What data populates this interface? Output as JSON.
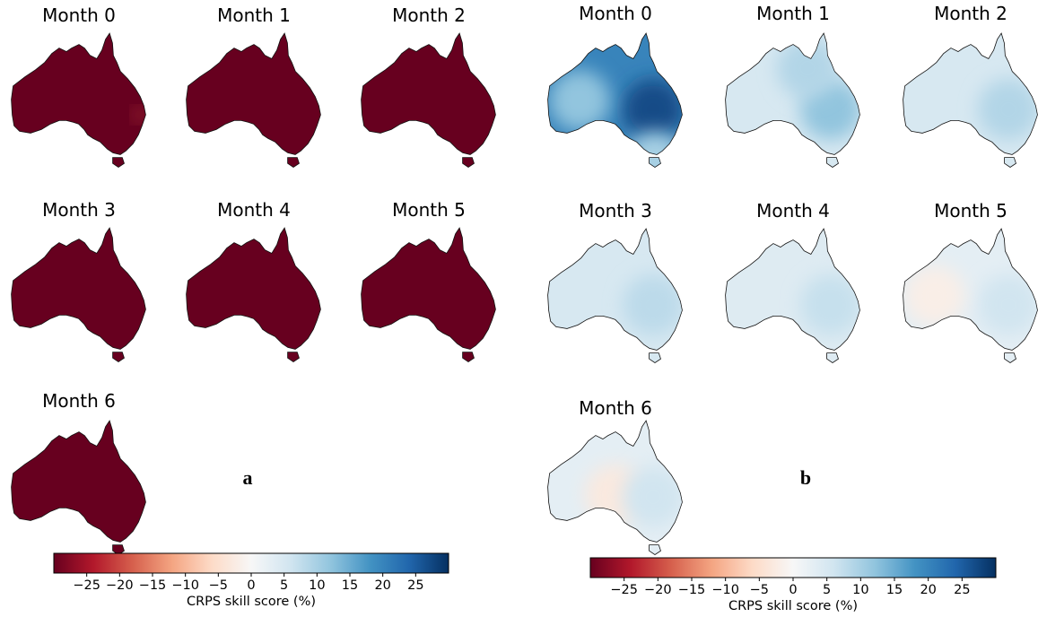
{
  "chart_data": [
    {
      "type": "heatmap",
      "panel_label": "a",
      "maps": [
        {
          "title": "Month 0",
          "dominant_value": -30,
          "hotspots": [
            {
              "place": "east-coast",
              "value": -20
            }
          ]
        },
        {
          "title": "Month 1",
          "dominant_value": -30,
          "hotspots": []
        },
        {
          "title": "Month 2",
          "dominant_value": -30,
          "hotspots": []
        },
        {
          "title": "Month 3",
          "dominant_value": -30,
          "hotspots": []
        },
        {
          "title": "Month 4",
          "dominant_value": -30,
          "hotspots": []
        },
        {
          "title": "Month 5",
          "dominant_value": -30,
          "hotspots": []
        },
        {
          "title": "Month 6",
          "dominant_value": -30,
          "hotspots": []
        }
      ],
      "colorbar": {
        "colormap": "RdBu",
        "range": [
          -30,
          30
        ],
        "ticks": [
          -25,
          -20,
          -15,
          -10,
          -5,
          0,
          5,
          10,
          15,
          20,
          25
        ],
        "tick_labels": [
          "−25",
          "−20",
          "−15",
          "−10",
          "−5",
          "0",
          "5",
          "10",
          "15",
          "20",
          "25"
        ],
        "label": "CRPS skill score (%)"
      }
    },
    {
      "type": "heatmap",
      "panel_label": "b",
      "maps": [
        {
          "title": "Month 0",
          "dominant_value": 20,
          "hotspots": [
            {
              "place": "east",
              "value": 27
            },
            {
              "place": "west",
              "value": 12
            },
            {
              "place": "tasmania",
              "value": 10
            }
          ]
        },
        {
          "title": "Month 1",
          "dominant_value": 5,
          "hotspots": [
            {
              "place": "east",
              "value": 12
            },
            {
              "place": "north",
              "value": 9
            }
          ]
        },
        {
          "title": "Month 2",
          "dominant_value": 5,
          "hotspots": [
            {
              "place": "east",
              "value": 9
            }
          ]
        },
        {
          "title": "Month 3",
          "dominant_value": 5,
          "hotspots": [
            {
              "place": "east",
              "value": 8
            }
          ]
        },
        {
          "title": "Month 4",
          "dominant_value": 4,
          "hotspots": [
            {
              "place": "east",
              "value": 7
            }
          ]
        },
        {
          "title": "Month 5",
          "dominant_value": 3,
          "hotspots": [
            {
              "place": "east",
              "value": 6
            },
            {
              "place": "west",
              "value": -2
            }
          ]
        },
        {
          "title": "Month 6",
          "dominant_value": 3,
          "hotspots": [
            {
              "place": "centre",
              "value": -3
            },
            {
              "place": "east",
              "value": 6
            }
          ]
        }
      ],
      "colorbar": {
        "colormap": "RdBu",
        "range": [
          -30,
          30
        ],
        "ticks": [
          -25,
          -20,
          -15,
          -10,
          -5,
          0,
          5,
          10,
          15,
          20,
          25
        ],
        "tick_labels": [
          "−25",
          "−20",
          "−15",
          "−10",
          "−5",
          "0",
          "5",
          "10",
          "15",
          "20",
          "25"
        ],
        "label": "CRPS skill score (%)"
      }
    }
  ],
  "colors": {
    "map_outline": "#111111",
    "background": "#ffffff"
  }
}
